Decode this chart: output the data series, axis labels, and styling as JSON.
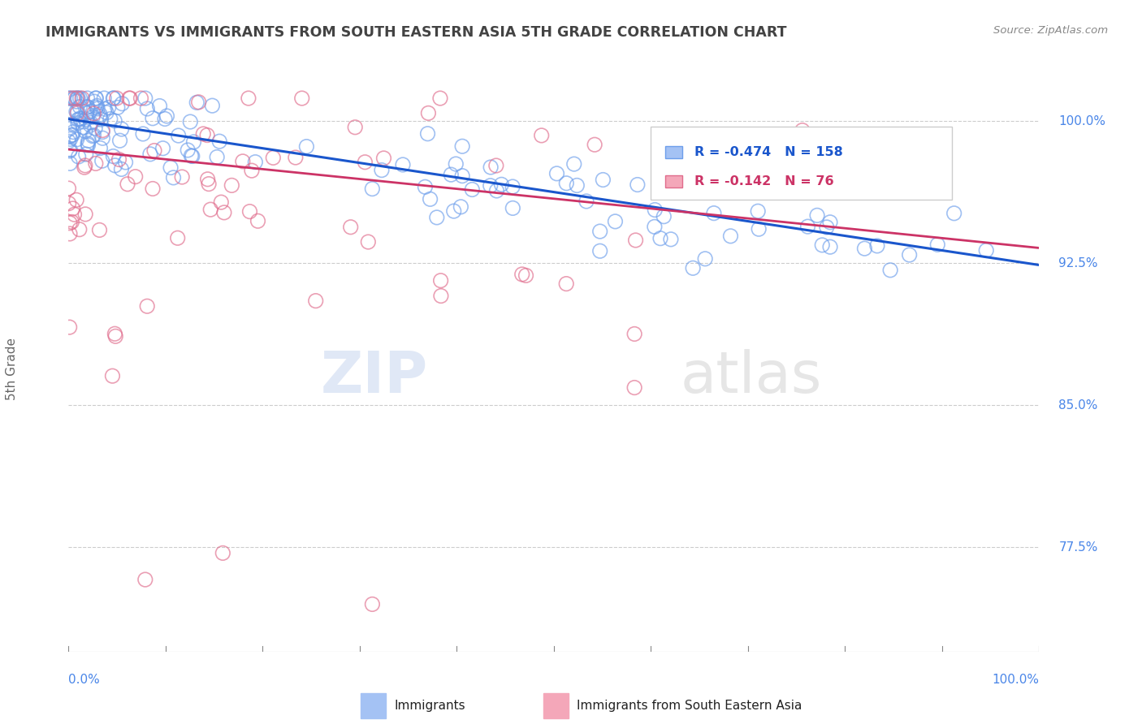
{
  "title": "IMMIGRANTS VS IMMIGRANTS FROM SOUTH EASTERN ASIA 5TH GRADE CORRELATION CHART",
  "source": "Source: ZipAtlas.com",
  "ylabel": "5th Grade",
  "xmin": 0.0,
  "xmax": 100.0,
  "ymin": 72.0,
  "ymax": 101.8,
  "yticks": [
    77.5,
    85.0,
    92.5,
    100.0
  ],
  "ytick_labels": [
    "77.5%",
    "85.0%",
    "92.5%",
    "100.0%"
  ],
  "blue_R": -0.474,
  "blue_N": 158,
  "pink_R": -0.142,
  "pink_N": 76,
  "blue_color": "#a4c2f4",
  "pink_color": "#f4a7b9",
  "blue_edge_color": "#6d9eeb",
  "pink_edge_color": "#e06c8c",
  "blue_line_color": "#1a56cc",
  "pink_line_color": "#cc3366",
  "title_color": "#434343",
  "axis_label_color": "#666666",
  "tick_color": "#4a86e8",
  "grid_color": "#cccccc",
  "background_color": "#ffffff",
  "legend_blue_label": "Immigrants",
  "legend_pink_label": "Immigrants from South Eastern Asia",
  "blue_trend_start": 100.1,
  "blue_trend_end": 92.4,
  "pink_trend_start": 98.5,
  "pink_trend_end": 93.3
}
